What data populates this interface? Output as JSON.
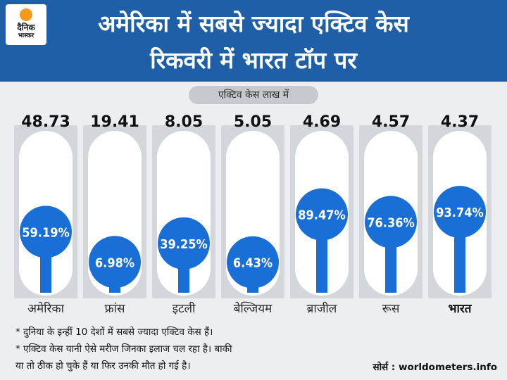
{
  "header": {
    "logo_line1": "दैनिक",
    "logo_line2": "भास्कर",
    "title_line1": "अमेरिका में सबसे ज्यादा एक्टिव केस",
    "title_line2": "रिकवरी में भारत टॉप पर"
  },
  "legend_note": "एक्टिव केस लाख में",
  "colors": {
    "header_bg": "#1e5fa8",
    "pin": "#1a6fd6",
    "capsule": "#ffffff",
    "page_bg": "#eceef1"
  },
  "chart_data": {
    "type": "bar",
    "categories": [
      "अमेरिका",
      "फ्रांस",
      "इटली",
      "बेल्जियम",
      "ब्राजील",
      "रूस",
      "भारत"
    ],
    "series": [
      {
        "values": [
          48.73,
          19.41,
          8.05,
          5.05,
          4.69,
          4.57,
          4.37
        ]
      },
      {
        "values": [
          59.19,
          6.98,
          39.25,
          6.43,
          89.47,
          76.36,
          93.74
        ]
      }
    ],
    "value_labels": [
      "48.73",
      "19.41",
      "8.05",
      "5.05",
      "4.69",
      "4.57",
      "4.37"
    ],
    "percent_labels": [
      "59.19%",
      "6.98%",
      "39.25%",
      "6.43%",
      "89.47%",
      "76.36%",
      "93.74%"
    ],
    "ylim": [
      0,
      100
    ]
  },
  "footnotes": [
    "* दुनिया के इन्हीं 10 देशों में सबसे ज्यादा एक्टिव केस हैं।",
    "* एक्टिव केस यानी ऐसे मरीज जिनका इलाज चल रहा है। बाकी",
    "या तो ठीक हो चुके हैं या फिर उनकी मौत हो गई है।"
  ],
  "source": "सोर्स : worldometers.info"
}
